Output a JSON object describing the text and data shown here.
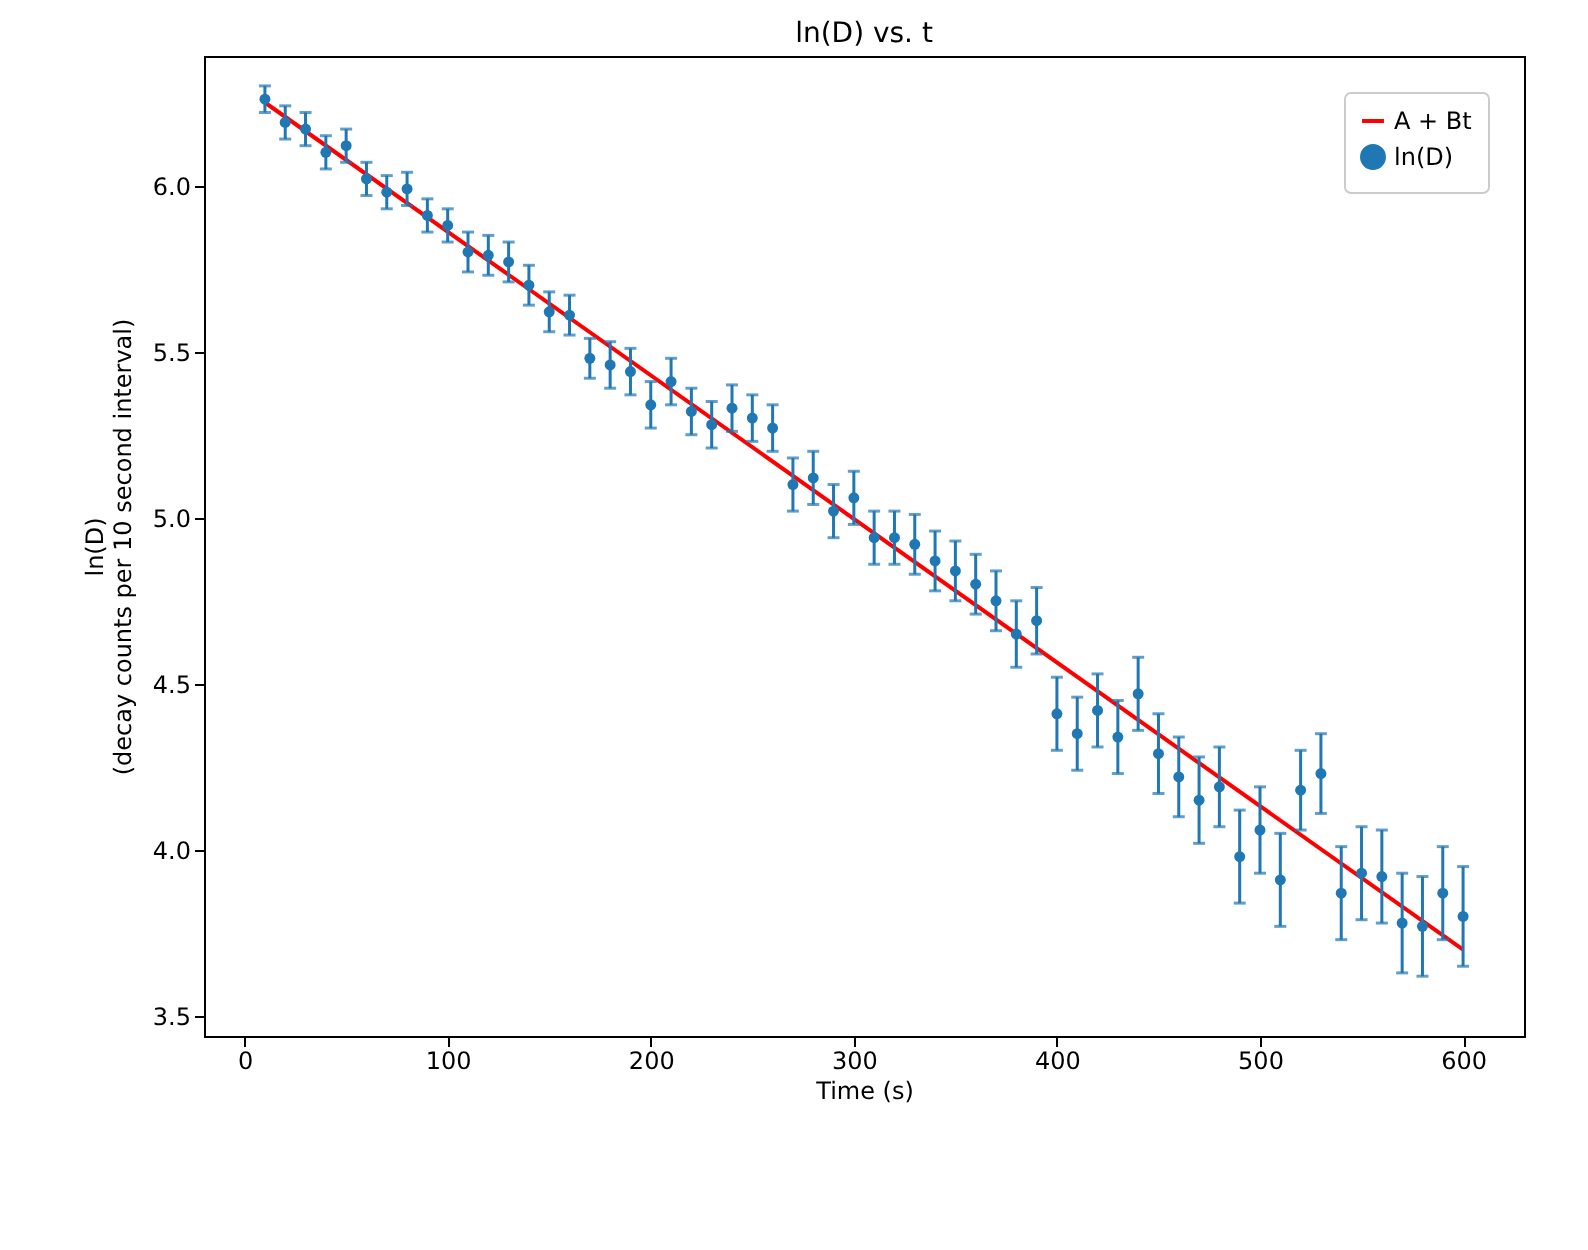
{
  "chart_data": {
    "type": "scatter",
    "title": "ln(D) vs. t",
    "xlabel": "Time (s)",
    "ylabel": "ln(D)\n(decay counts per 10 second interval)",
    "xlim": [
      -20,
      630
    ],
    "xticks": [
      0,
      100,
      200,
      300,
      400,
      500,
      600
    ],
    "ylim": [
      3.44,
      6.39
    ],
    "yticks": [
      3.5,
      {
        "value": 4,
        "label": "4.0"
      },
      4.5,
      {
        "value": 5,
        "label": "5.0"
      },
      5.5,
      {
        "value": 6,
        "label": "6.0"
      }
    ],
    "grid": false,
    "legend": "top right",
    "series": [
      {
        "name": "A + Bt",
        "type": "line",
        "color": "#ff0000",
        "x": [
          10,
          600
        ],
        "values": [
          6.25,
          3.7
        ]
      },
      {
        "name": "ln(D)",
        "marker": "circle",
        "color": "#1f77b4",
        "x": [
          10,
          20,
          30,
          40,
          50,
          60,
          70,
          80,
          90,
          100,
          110,
          120,
          130,
          140,
          150,
          160,
          170,
          180,
          190,
          200,
          210,
          220,
          230,
          240,
          250,
          260,
          270,
          280,
          290,
          300,
          310,
          320,
          330,
          340,
          350,
          360,
          370,
          380,
          390,
          400,
          410,
          420,
          430,
          440,
          450,
          460,
          470,
          480,
          490,
          500,
          510,
          520,
          530,
          540,
          550,
          560,
          570,
          580,
          590,
          600
        ],
        "values": [
          6.26,
          6.19,
          6.17,
          6.1,
          6.12,
          6.02,
          5.98,
          5.99,
          5.91,
          5.88,
          5.8,
          5.79,
          5.77,
          5.7,
          5.62,
          5.61,
          5.48,
          5.46,
          5.44,
          5.34,
          5.41,
          5.32,
          5.28,
          5.33,
          5.3,
          5.27,
          5.1,
          5.12,
          5.02,
          5.06,
          4.94,
          4.94,
          4.92,
          4.87,
          4.84,
          4.8,
          4.75,
          4.65,
          4.69,
          4.41,
          4.35,
          4.42,
          4.34,
          4.47,
          4.29,
          4.22,
          4.15,
          4.19,
          3.98,
          4.06,
          3.91,
          4.18,
          4.23,
          3.87,
          3.93,
          3.92,
          3.78,
          3.77,
          3.87,
          3.8
        ],
        "errors": [
          0.04,
          0.05,
          0.05,
          0.05,
          0.05,
          0.05,
          0.05,
          0.05,
          0.05,
          0.05,
          0.06,
          0.06,
          0.06,
          0.06,
          0.06,
          0.06,
          0.06,
          0.07,
          0.07,
          0.07,
          0.07,
          0.07,
          0.07,
          0.07,
          0.07,
          0.07,
          0.08,
          0.08,
          0.08,
          0.08,
          0.08,
          0.08,
          0.09,
          0.09,
          0.09,
          0.09,
          0.09,
          0.1,
          0.1,
          0.11,
          0.11,
          0.11,
          0.11,
          0.11,
          0.12,
          0.12,
          0.13,
          0.12,
          0.14,
          0.13,
          0.14,
          0.12,
          0.12,
          0.14,
          0.14,
          0.14,
          0.15,
          0.15,
          0.14,
          0.15
        ]
      }
    ]
  }
}
